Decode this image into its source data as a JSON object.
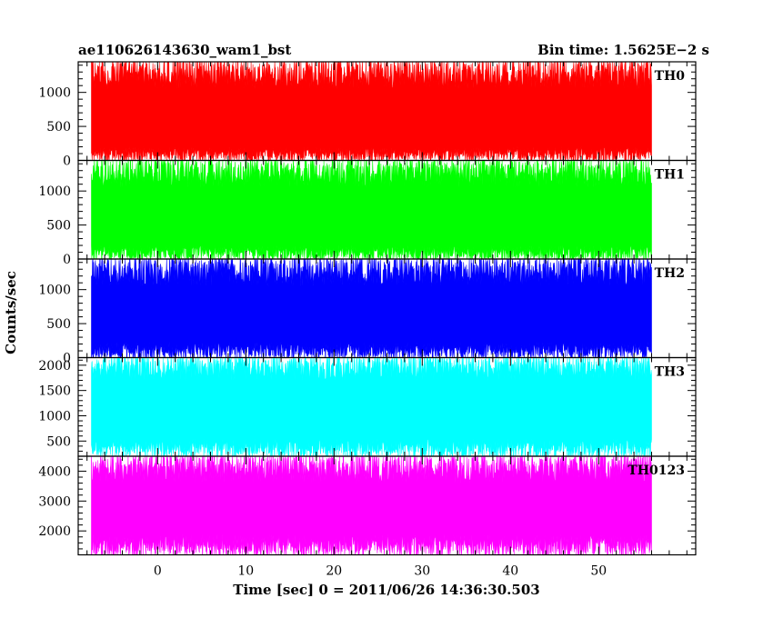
{
  "header": {
    "left_title": "ae110626143630_wam1_bst",
    "right_title": "Bin time: 1.5625E−2 s"
  },
  "chart_data": {
    "type": "line",
    "xlabel": "Time [sec] 0 = 2011/06/26 14:36:30.503",
    "ylabel": "Counts/sec",
    "xlim": [
      -9,
      61
    ],
    "data_x_range": [
      -7.5,
      56
    ],
    "bin_time": 0.015625,
    "x_ticks": [
      0,
      10,
      20,
      30,
      40,
      50
    ],
    "x_minor_step": 2,
    "panels": [
      {
        "label": "TH0",
        "color": "#ff0000",
        "ylim": [
          0,
          1450
        ],
        "y_ticks": [
          0,
          500,
          1000
        ],
        "y_minor_step": 100,
        "band_low": [
          0,
          200
        ],
        "band_high": [
          1050,
          1450
        ],
        "mean": 640
      },
      {
        "label": "TH1",
        "color": "#00ff00",
        "ylim": [
          0,
          1450
        ],
        "y_ticks": [
          0,
          500,
          1000
        ],
        "y_minor_step": 100,
        "band_low": [
          0,
          200
        ],
        "band_high": [
          1050,
          1450
        ],
        "mean": 640
      },
      {
        "label": "TH2",
        "color": "#0000ff",
        "ylim": [
          0,
          1450
        ],
        "y_ticks": [
          0,
          500,
          1000
        ],
        "y_minor_step": 100,
        "band_low": [
          0,
          230
        ],
        "band_high": [
          1050,
          1450
        ],
        "mean": 700
      },
      {
        "label": "TH3",
        "color": "#00ffff",
        "ylim": [
          200,
          2150
        ],
        "y_ticks": [
          500,
          1000,
          1500,
          2000
        ],
        "y_minor_step": 100,
        "band_low": [
          200,
          550
        ],
        "band_high": [
          1700,
          2150
        ],
        "mean": 1150
      },
      {
        "label": "TH0123",
        "color": "#ff00ff",
        "ylim": [
          1200,
          4500
        ],
        "y_ticks": [
          2000,
          3000,
          4000
        ],
        "y_minor_step": 200,
        "band_low": [
          1200,
          1900
        ],
        "band_high": [
          3600,
          4500
        ],
        "mean": 2700
      }
    ]
  }
}
